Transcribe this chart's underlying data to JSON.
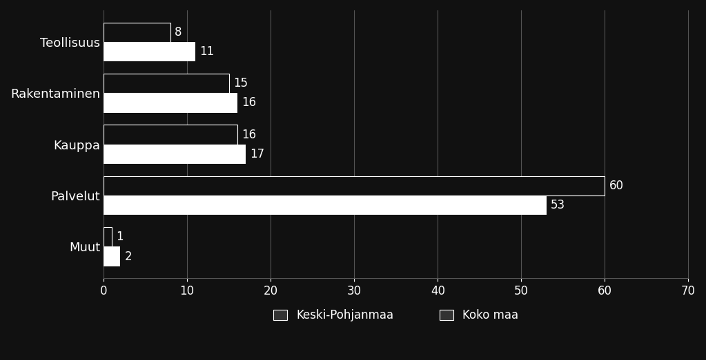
{
  "categories": [
    "Teollisuus",
    "Rakentaminen",
    "Kauppa",
    "Palvelut",
    "Muut"
  ],
  "keski_pohjanmaa": [
    11,
    16,
    17,
    53,
    2
  ],
  "koko_maa": [
    8,
    15,
    16,
    60,
    1
  ],
  "bar_color_keski": "#ffffff",
  "bar_color_koko": "#111111",
  "background_color": "#111111",
  "text_color": "#ffffff",
  "grid_color": "#555555",
  "xlim": [
    0,
    70
  ],
  "xticks": [
    0,
    10,
    20,
    30,
    40,
    50,
    60,
    70
  ],
  "legend_keski": "Keski-Pohjanmaa",
  "legend_koko": "Koko maa",
  "legend_marker_color": "#333333",
  "bar_height": 0.38,
  "label_fontsize": 13,
  "tick_fontsize": 12,
  "legend_fontsize": 12,
  "value_fontsize": 12
}
